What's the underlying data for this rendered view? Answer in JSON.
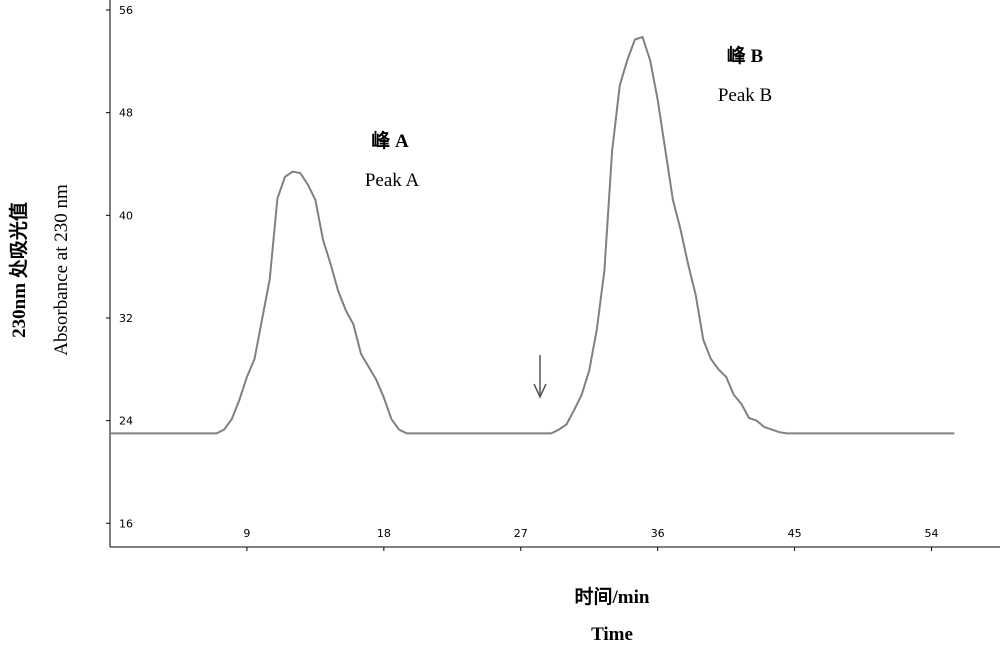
{
  "chart_data": {
    "type": "line",
    "ylabel": [
      "230nm 处吸光值",
      "Absorbance at 230 nm"
    ],
    "xlabel": [
      "时间/min",
      "Time"
    ],
    "annotations": [
      "峰 A",
      "Peak A",
      "峰 B",
      "Peak B"
    ],
    "x": [
      0,
      7,
      7.5,
      8,
      8.5,
      9,
      9.5,
      10,
      10.5,
      11,
      11.5,
      12,
      12.5,
      13,
      13.5,
      14,
      14.5,
      15,
      15.5,
      16,
      16.5,
      17,
      17.5,
      18,
      18.5,
      19,
      19.5,
      20,
      29,
      29.5,
      30,
      30.5,
      31,
      31.5,
      32,
      32.5,
      33,
      33.5,
      34,
      34.5,
      35,
      35.5,
      36,
      36.5,
      37,
      37.5,
      38,
      38.5,
      39,
      39.5,
      40,
      40.5,
      41,
      41.5,
      42,
      42.5,
      43,
      43.5,
      44,
      44.5,
      45,
      55.5
    ],
    "series": [
      {
        "color": "#808080",
        "values": [
          23,
          23,
          23.3,
          24.1,
          25.6,
          27.4,
          28.8,
          31.9,
          35,
          41.3,
          43,
          43.4,
          43.3,
          42.4,
          41.2,
          38.1,
          36.2,
          34.1,
          32.6,
          31.5,
          29.2,
          28.2,
          27.2,
          25.8,
          24.1,
          23.3,
          23,
          23,
          23,
          23.3,
          23.7,
          24.8,
          26,
          27.9,
          31.1,
          35.7,
          45,
          50.1,
          52.1,
          53.7,
          53.9,
          52.1,
          49,
          45.1,
          41.2,
          38.9,
          36.2,
          33.8,
          30.3,
          28.8,
          28,
          27.4,
          26,
          25.3,
          24.2,
          24,
          23.5,
          23.3,
          23.1,
          23,
          23,
          23
        ]
      }
    ],
    "xlim": [
      0,
      58.5
    ],
    "ylim": [
      14.15,
      56.78
    ],
    "xticks": [
      9,
      18,
      27,
      36,
      45,
      54
    ],
    "yticks": [
      16,
      24,
      32,
      40,
      48,
      56
    ]
  }
}
